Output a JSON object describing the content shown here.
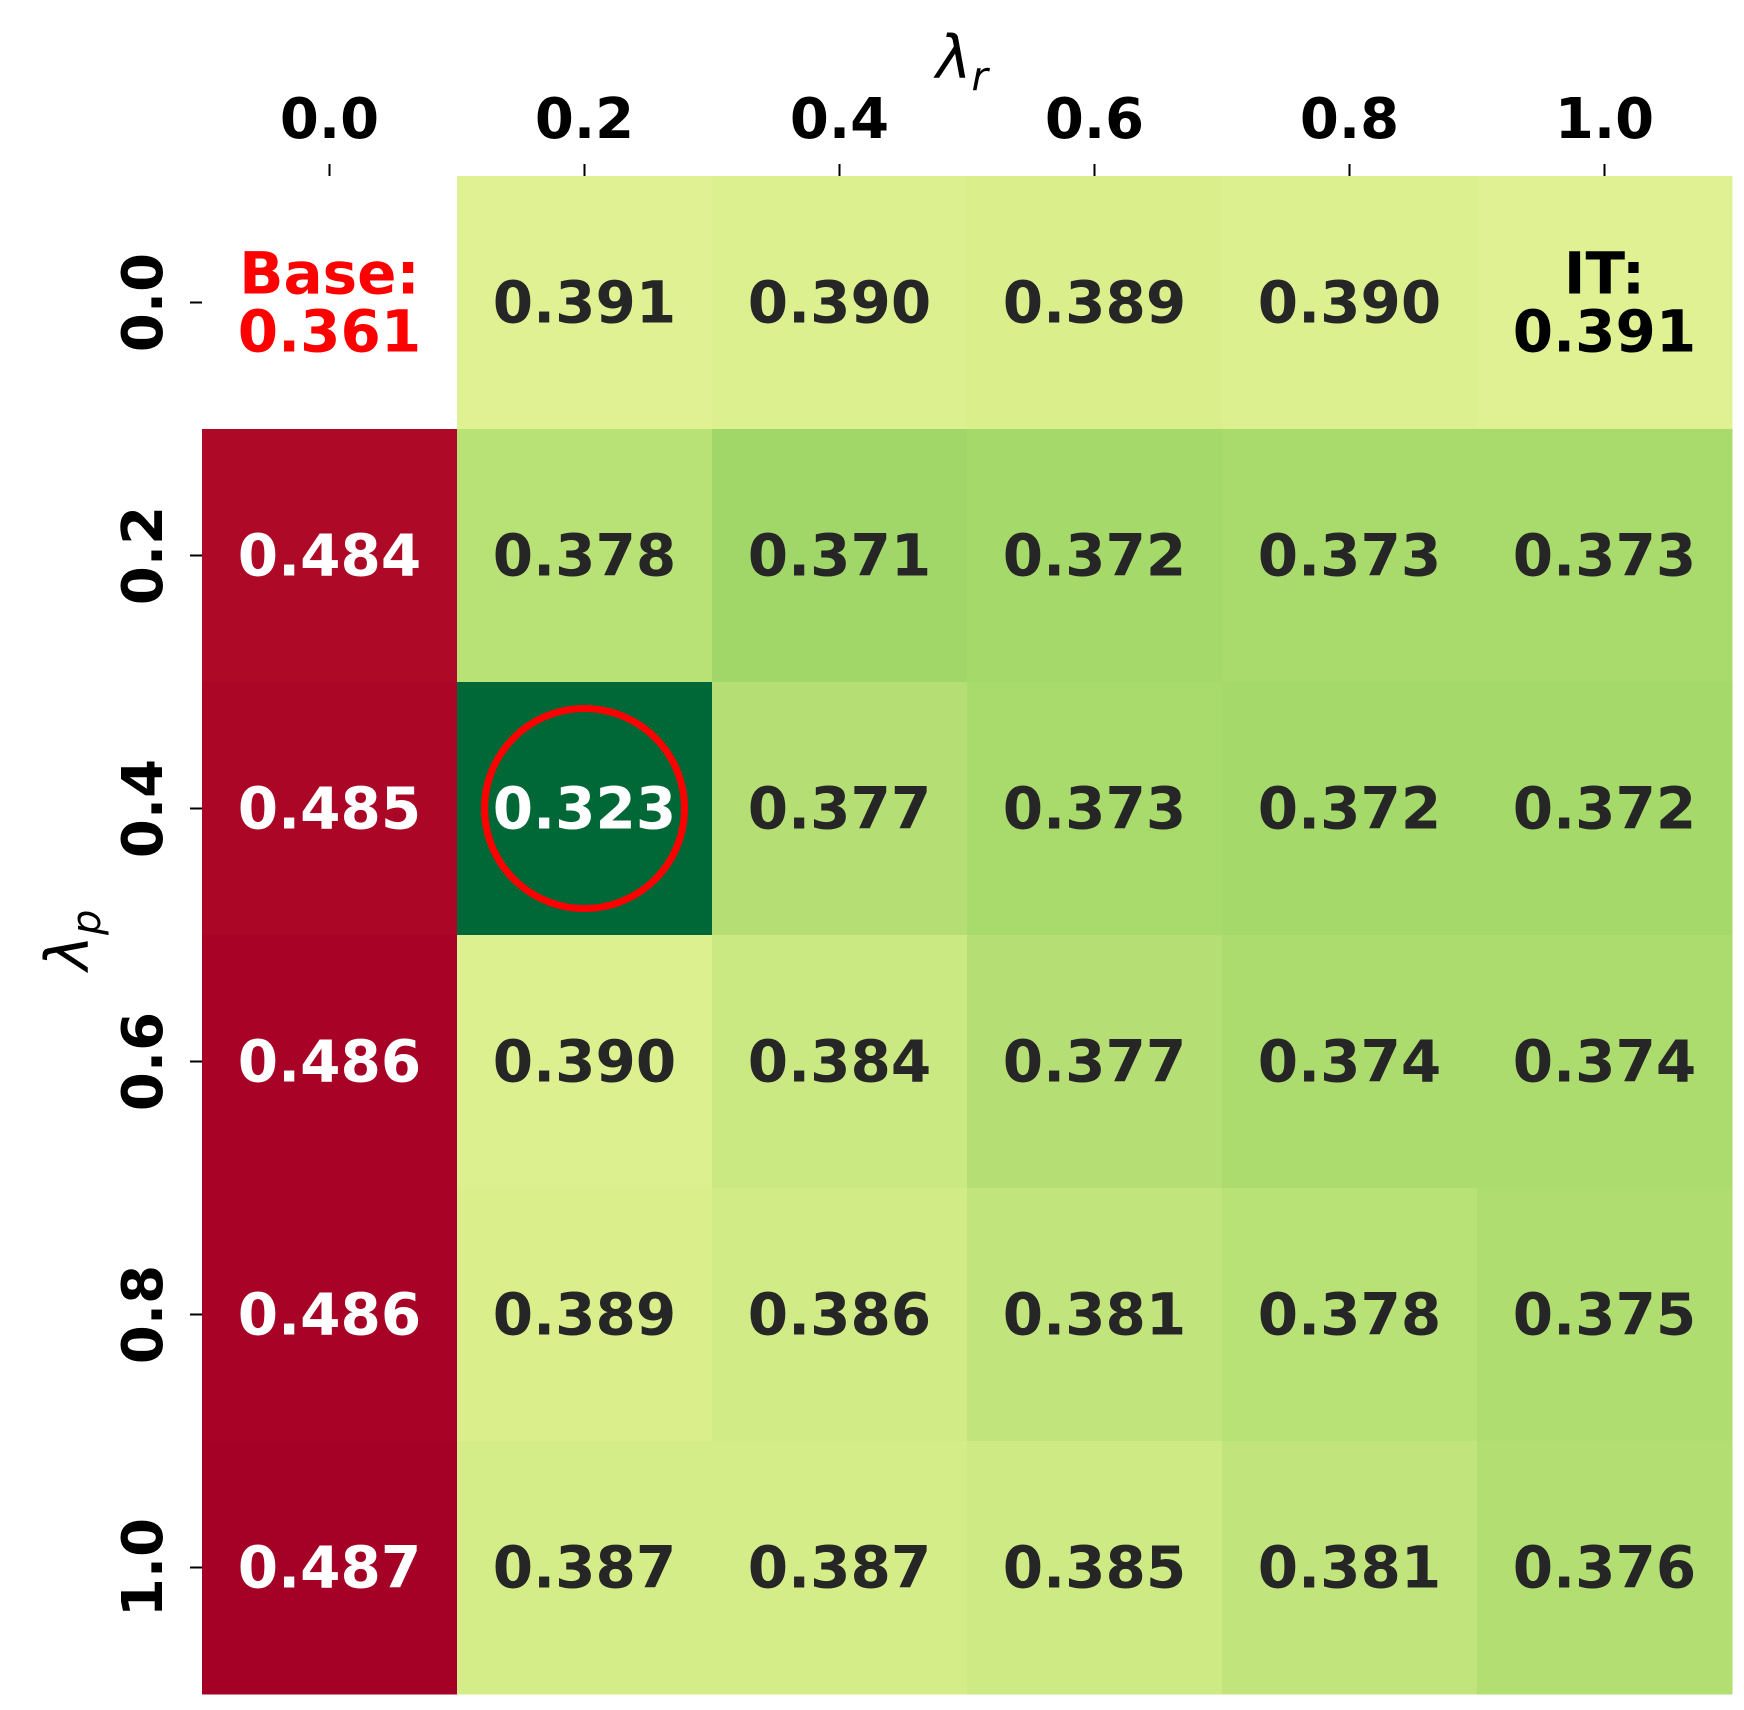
{
  "chart_data": {
    "type": "heatmap",
    "xlabel": {
      "symbol": "λ",
      "subscript": "r"
    },
    "ylabel": {
      "symbol": "λ",
      "subscript": "p"
    },
    "x_ticks": [
      "0.0",
      "0.2",
      "0.4",
      "0.6",
      "0.8",
      "1.0"
    ],
    "y_ticks": [
      "0.0",
      "0.2",
      "0.4",
      "0.6",
      "0.8",
      "1.0"
    ],
    "x_axis_position": "top",
    "colormap": "RdYlGn_r",
    "color_range": [
      0.323,
      0.487
    ],
    "cells": [
      [
        null,
        0.391,
        0.39,
        0.389,
        0.39,
        0.391
      ],
      [
        0.484,
        0.378,
        0.371,
        0.372,
        0.373,
        0.373
      ],
      [
        0.485,
        0.323,
        0.377,
        0.373,
        0.372,
        0.372
      ],
      [
        0.486,
        0.39,
        0.384,
        0.377,
        0.374,
        0.374
      ],
      [
        0.486,
        0.389,
        0.386,
        0.381,
        0.378,
        0.375
      ],
      [
        0.487,
        0.387,
        0.387,
        0.385,
        0.381,
        0.376
      ]
    ],
    "annotations": [
      {
        "row": 0,
        "col": 0,
        "lines": [
          "Base:",
          "0.361"
        ],
        "color": "#ff0000",
        "cell_background": "none"
      },
      {
        "row": 0,
        "col": 5,
        "lines": [
          "IT:",
          "0.391"
        ],
        "color": "#000000"
      }
    ],
    "highlight": {
      "row": 2,
      "col": 1,
      "shape": "circle",
      "color": "#ff0000"
    },
    "grid": false,
    "legend": "none",
    "colorbar": false
  }
}
